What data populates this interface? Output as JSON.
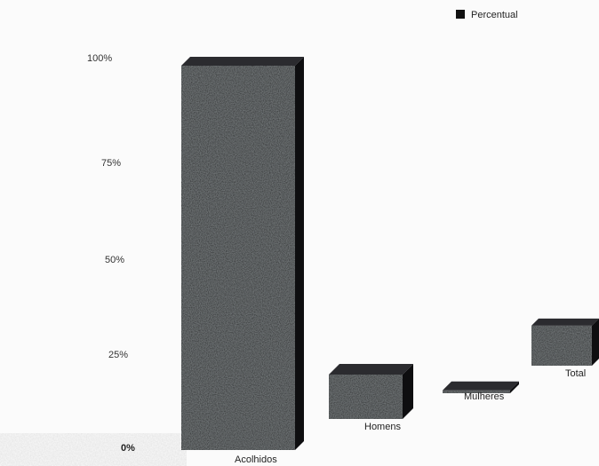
{
  "chart_data": {
    "type": "bar",
    "categories": [
      "Acolhidos",
      "Homens",
      "Mulheres",
      "Total"
    ],
    "series": [
      {
        "name": "Percentual",
        "values": [
          100,
          14,
          3,
          12
        ]
      }
    ],
    "yticks": [
      "0%",
      "25%",
      "50%",
      "75%",
      "100%"
    ],
    "ylim": [
      0,
      100
    ],
    "legend_position": "top-right",
    "grid": false,
    "bar_color": "#1c1c1e",
    "style": "3d"
  }
}
